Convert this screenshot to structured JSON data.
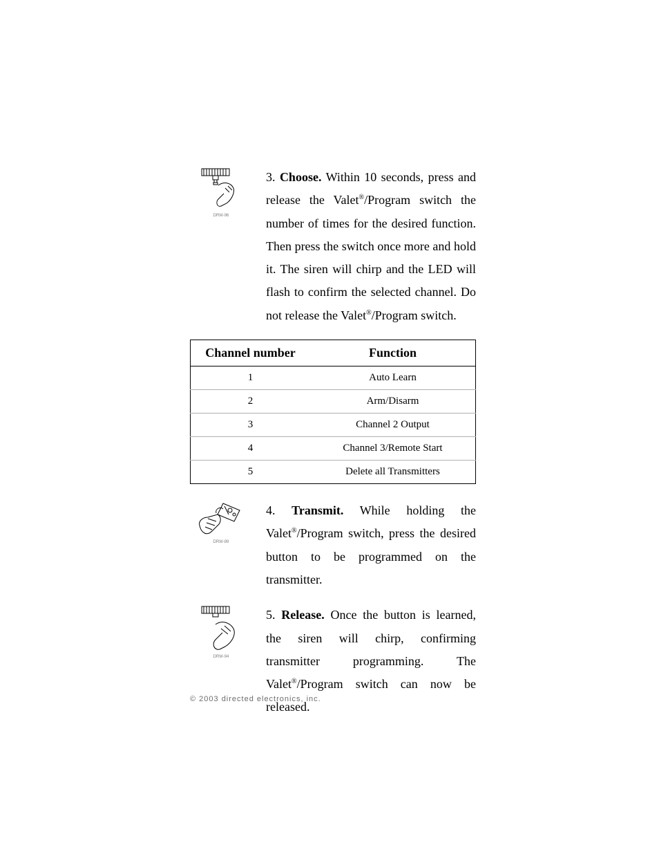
{
  "step3": {
    "number": "3.",
    "title": "Choose.",
    "body_html": "Within 10 seconds, press and release the Valet<sup class=\"reg\">®</sup>/Program switch the number of times for the desired function. Then press the switch once more and hold it. The siren will chirp and the LED will flash to confirm the selected channel. Do not release the Valet<sup class=\"reg\">®</sup>/Program switch.",
    "icon_label": "DRW-96"
  },
  "table": {
    "headers": [
      "Channel number",
      "Function"
    ],
    "rows": [
      [
        "1",
        "Auto Learn"
      ],
      [
        "2",
        "Arm/Disarm"
      ],
      [
        "3",
        "Channel 2 Output"
      ],
      [
        "4",
        "Channel 3/Remote Start"
      ],
      [
        "5",
        "Delete all Transmitters"
      ]
    ]
  },
  "step4": {
    "number": "4.",
    "title": "Transmit.",
    "body_html": "While holding the Valet<sup class=\"reg\">®</sup>/Program switch, press the desired button to be programmed on the transmitter.",
    "icon_label": "DRW-89"
  },
  "step5": {
    "number": "5.",
    "title": "Release.",
    "body_html": "Once the button is learned, the siren will chirp, confirming transmitter programming. The Valet<sup class=\"reg\">®</sup>/Program switch can now be released.",
    "icon_label": "DRW-94"
  },
  "footer": "© 2003 directed electronics, inc.",
  "style": {
    "body_fontsize": 18,
    "table_header_fontsize": 18,
    "table_cell_fontsize": 15,
    "footer_fontsize": 11,
    "text_color": "#000000",
    "footer_color": "#6b6b6b",
    "border_color": "#000000",
    "row_divider_color": "#b0b0b0",
    "background_color": "#ffffff"
  }
}
